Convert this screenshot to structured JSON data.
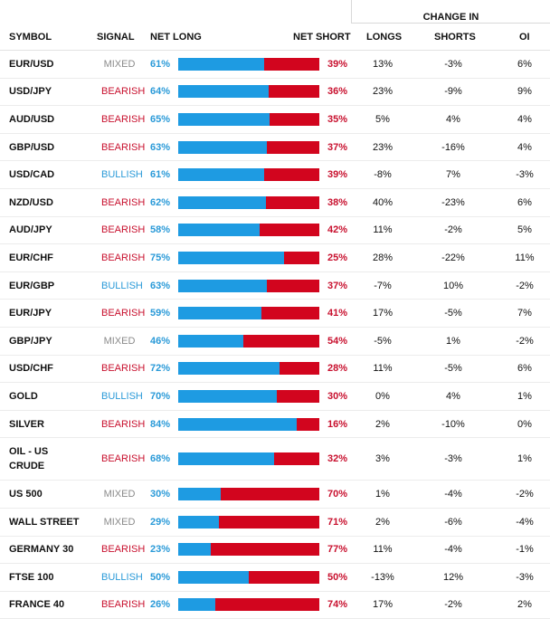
{
  "header": {
    "change_in": "CHANGE IN",
    "symbol": "SYMBOL",
    "signal": "SIGNAL",
    "net_long": "NET LONG",
    "net_short": "NET SHORT",
    "longs": "LONGS",
    "shorts": "SHORTS",
    "oi": "OI"
  },
  "colors": {
    "long": "#1e9be2",
    "short": "#d2051e",
    "mixed": "#8a8a8a"
  },
  "chart_data": {
    "type": "table",
    "columns": [
      "SYMBOL",
      "SIGNAL",
      "NET LONG",
      "NET SHORT",
      "LONGS",
      "SHORTS",
      "OI"
    ],
    "rows": [
      {
        "symbol": "EUR/USD",
        "signal": "MIXED",
        "net_long": 61,
        "net_short": 39,
        "net_long_label": "61%",
        "net_short_label": "39%",
        "longs": "13%",
        "shorts": "-3%",
        "oi": "6%"
      },
      {
        "symbol": "USD/JPY",
        "signal": "BEARISH",
        "net_long": 64,
        "net_short": 36,
        "net_long_label": "64%",
        "net_short_label": "36%",
        "longs": "23%",
        "shorts": "-9%",
        "oi": "9%"
      },
      {
        "symbol": "AUD/USD",
        "signal": "BEARISH",
        "net_long": 65,
        "net_short": 35,
        "net_long_label": "65%",
        "net_short_label": "35%",
        "longs": "5%",
        "shorts": "4%",
        "oi": "4%"
      },
      {
        "symbol": "GBP/USD",
        "signal": "BEARISH",
        "net_long": 63,
        "net_short": 37,
        "net_long_label": "63%",
        "net_short_label": "37%",
        "longs": "23%",
        "shorts": "-16%",
        "oi": "4%"
      },
      {
        "symbol": "USD/CAD",
        "signal": "BULLISH",
        "net_long": 61,
        "net_short": 39,
        "net_long_label": "61%",
        "net_short_label": "39%",
        "longs": "-8%",
        "shorts": "7%",
        "oi": "-3%"
      },
      {
        "symbol": "NZD/USD",
        "signal": "BEARISH",
        "net_long": 62,
        "net_short": 38,
        "net_long_label": "62%",
        "net_short_label": "38%",
        "longs": "40%",
        "shorts": "-23%",
        "oi": "6%"
      },
      {
        "symbol": "AUD/JPY",
        "signal": "BEARISH",
        "net_long": 58,
        "net_short": 42,
        "net_long_label": "58%",
        "net_short_label": "42%",
        "longs": "11%",
        "shorts": "-2%",
        "oi": "5%"
      },
      {
        "symbol": "EUR/CHF",
        "signal": "BEARISH",
        "net_long": 75,
        "net_short": 25,
        "net_long_label": "75%",
        "net_short_label": "25%",
        "longs": "28%",
        "shorts": "-22%",
        "oi": "11%"
      },
      {
        "symbol": "EUR/GBP",
        "signal": "BULLISH",
        "net_long": 63,
        "net_short": 37,
        "net_long_label": "63%",
        "net_short_label": "37%",
        "longs": "-7%",
        "shorts": "10%",
        "oi": "-2%"
      },
      {
        "symbol": "EUR/JPY",
        "signal": "BEARISH",
        "net_long": 59,
        "net_short": 41,
        "net_long_label": "59%",
        "net_short_label": "41%",
        "longs": "17%",
        "shorts": "-5%",
        "oi": "7%"
      },
      {
        "symbol": "GBP/JPY",
        "signal": "MIXED",
        "net_long": 46,
        "net_short": 54,
        "net_long_label": "46%",
        "net_short_label": "54%",
        "longs": "-5%",
        "shorts": "1%",
        "oi": "-2%"
      },
      {
        "symbol": "USD/CHF",
        "signal": "BEARISH",
        "net_long": 72,
        "net_short": 28,
        "net_long_label": "72%",
        "net_short_label": "28%",
        "longs": "11%",
        "shorts": "-5%",
        "oi": "6%"
      },
      {
        "symbol": "GOLD",
        "signal": "BULLISH",
        "net_long": 70,
        "net_short": 30,
        "net_long_label": "70%",
        "net_short_label": "30%",
        "longs": "0%",
        "shorts": "4%",
        "oi": "1%"
      },
      {
        "symbol": "SILVER",
        "signal": "BEARISH",
        "net_long": 84,
        "net_short": 16,
        "net_long_label": "84%",
        "net_short_label": "16%",
        "longs": "2%",
        "shorts": "-10%",
        "oi": "0%"
      },
      {
        "symbol": "OIL - US CRUDE",
        "signal": "BEARISH",
        "net_long": 68,
        "net_short": 32,
        "net_long_label": "68%",
        "net_short_label": "32%",
        "longs": "3%",
        "shorts": "-3%",
        "oi": "1%"
      },
      {
        "symbol": "US 500",
        "signal": "MIXED",
        "net_long": 30,
        "net_short": 70,
        "net_long_label": "30%",
        "net_short_label": "70%",
        "longs": "1%",
        "shorts": "-4%",
        "oi": "-2%"
      },
      {
        "symbol": "WALL STREET",
        "signal": "MIXED",
        "net_long": 29,
        "net_short": 71,
        "net_long_label": "29%",
        "net_short_label": "71%",
        "longs": "2%",
        "shorts": "-6%",
        "oi": "-4%"
      },
      {
        "symbol": "GERMANY 30",
        "signal": "BEARISH",
        "net_long": 23,
        "net_short": 77,
        "net_long_label": "23%",
        "net_short_label": "77%",
        "longs": "11%",
        "shorts": "-4%",
        "oi": "-1%"
      },
      {
        "symbol": "FTSE 100",
        "signal": "BULLISH",
        "net_long": 50,
        "net_short": 50,
        "net_long_label": "50%",
        "net_short_label": "50%",
        "longs": "-13%",
        "shorts": "12%",
        "oi": "-3%"
      },
      {
        "symbol": "FRANCE 40",
        "signal": "BEARISH",
        "net_long": 26,
        "net_short": 74,
        "net_long_label": "26%",
        "net_short_label": "74%",
        "longs": "17%",
        "shorts": "-2%",
        "oi": "2%"
      }
    ]
  }
}
